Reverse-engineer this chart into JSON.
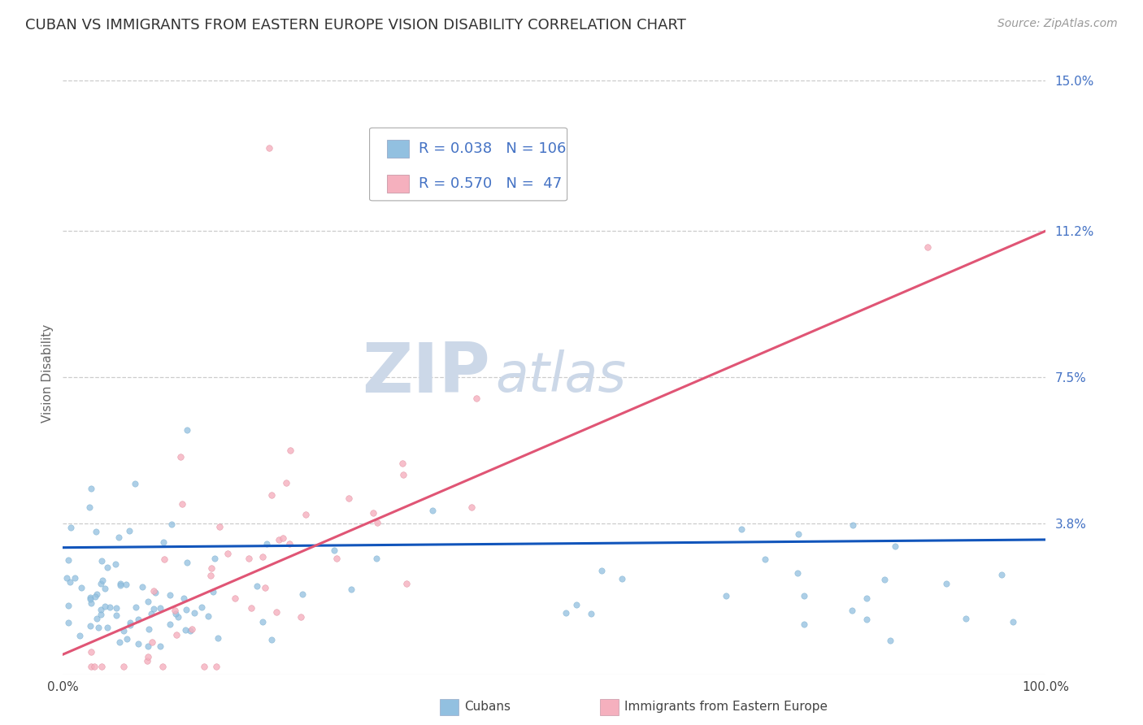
{
  "title": "CUBAN VS IMMIGRANTS FROM EASTERN EUROPE VISION DISABILITY CORRELATION CHART",
  "source": "Source: ZipAtlas.com",
  "ylabel": "Vision Disability",
  "xlim": [
    0,
    1
  ],
  "ylim": [
    0,
    0.15
  ],
  "yticks": [
    0.038,
    0.075,
    0.112,
    0.15
  ],
  "ytick_labels": [
    "3.8%",
    "7.5%",
    "11.2%",
    "15.0%"
  ],
  "series1_name": "Cubans",
  "series1_color": "#92c0e0",
  "series1_R": 0.038,
  "series1_N": 106,
  "series1_line_color": "#1155bb",
  "series1_line_y0": 0.032,
  "series1_line_y1": 0.034,
  "series2_name": "Immigrants from Eastern Europe",
  "series2_color": "#f5b0be",
  "series2_R": 0.57,
  "series2_N": 47,
  "series2_line_color": "#e05575",
  "series2_line_y0": 0.005,
  "series2_line_y1": 0.112,
  "watermark_zip": "ZIP",
  "watermark_atlas": "atlas",
  "watermark_color": "#ccd8e8",
  "background_color": "#ffffff",
  "grid_color": "#cccccc",
  "legend_color": "#4472c4",
  "title_fontsize": 13,
  "axis_label_fontsize": 11,
  "tick_fontsize": 11,
  "legend_fontsize": 13
}
